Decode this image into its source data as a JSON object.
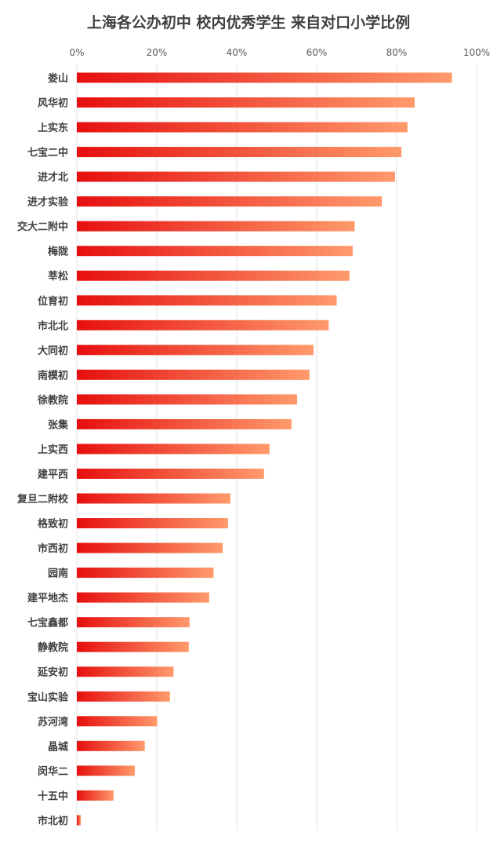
{
  "chart_data": {
    "type": "bar",
    "orientation": "horizontal",
    "title": "上海各公办初中 校内优秀学生 来自对口小学比例",
    "xlabel": "",
    "ylabel": "",
    "xlim": [
      0,
      100
    ],
    "x_ticks": [
      "0%",
      "20%",
      "40%",
      "60%",
      "80%",
      "100%"
    ],
    "x_tick_values": [
      0,
      20,
      40,
      60,
      80,
      100
    ],
    "grid": true,
    "legend": "none",
    "gradient_colors": [
      "#e60f0f",
      "#ff9a6b"
    ],
    "categories": [
      "娄山",
      "风华初",
      "上实东",
      "七宝二中",
      "进才北",
      "进才实验",
      "交大二附中",
      "梅陇",
      "莘松",
      "位育初",
      "市北北",
      "大同初",
      "南模初",
      "徐教院",
      "张集",
      "上实西",
      "建平西",
      "复旦二附校",
      "格致初",
      "市西初",
      "园南",
      "建平地杰",
      "七宝鑫都",
      "静教院",
      "延安初",
      "宝山实验",
      "苏河湾",
      "晶城",
      "闵华二",
      "十五中",
      "市北初"
    ],
    "values": [
      93.8,
      84.5,
      82.7,
      81.2,
      79.6,
      76.3,
      69.5,
      69.0,
      68.2,
      65.0,
      63.0,
      59.2,
      58.2,
      55.1,
      53.7,
      48.2,
      46.8,
      38.4,
      37.8,
      36.5,
      34.2,
      33.1,
      28.2,
      28.0,
      24.2,
      23.3,
      20.1,
      17.0,
      14.5,
      9.2,
      1.0
    ]
  }
}
